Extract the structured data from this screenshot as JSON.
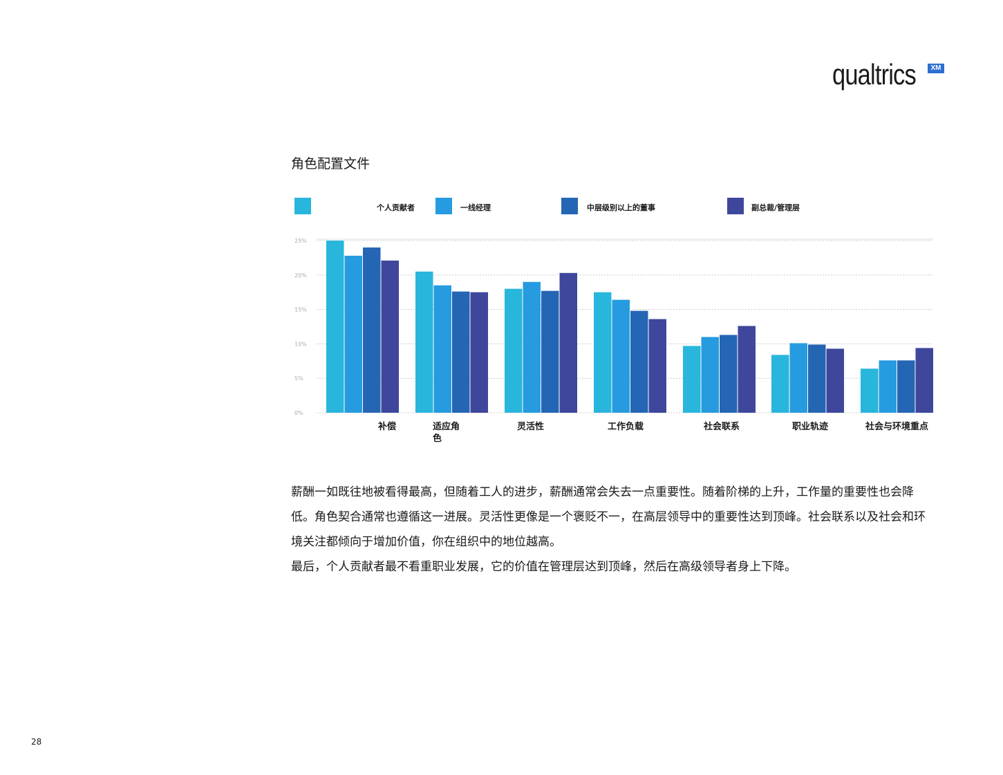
{
  "logo": {
    "text": "qualtrics",
    "badge": "XM"
  },
  "section_title": "角色配置文件",
  "colors": {
    "series_1": "#29b6dc",
    "series_2": "#279be0",
    "series_3": "#2466b4",
    "series_4": "#3e479c",
    "grid": "#c9c9c9",
    "tick": "#aaaaaa"
  },
  "chart_data": {
    "type": "bar",
    "title": "",
    "xlabel": "",
    "ylabel": "",
    "ylim": [
      0,
      25
    ],
    "yticks": [
      "0%",
      "5%",
      "10%",
      "15%",
      "20%",
      "25%"
    ],
    "legend_position": "top",
    "grid": true,
    "categories": [
      "补偿",
      "适应角色",
      "灵活性",
      "工作负载",
      "社会联系",
      "职业轨迹",
      "社会与环境重点"
    ],
    "series": [
      {
        "name": "个人贡献者",
        "values": [
          25.0,
          20.5,
          18.0,
          17.5,
          9.7,
          8.4,
          6.4
        ]
      },
      {
        "name": "一线经理",
        "values": [
          22.8,
          18.5,
          19.0,
          16.4,
          11.0,
          10.1,
          7.6
        ]
      },
      {
        "name": "中层级别以上的董事",
        "values": [
          24.0,
          17.6,
          17.7,
          14.8,
          11.3,
          9.9,
          7.6
        ]
      },
      {
        "name": "副总裁/管理层",
        "values": [
          22.1,
          17.5,
          20.3,
          13.6,
          12.6,
          9.3,
          9.4
        ]
      }
    ]
  },
  "body": {
    "paragraphs": [
      "薪酬一如既往地被看得最高，但随着工人的进步，薪酬通常会失去一点重要性。随着阶梯的上升，工作量的重要性也会降低。角色契合通常也遵循这一进展。灵活性更像是一个褒贬不一，在高层领导中的重要性达到顶峰。社会联系以及社会和环境关注都倾向于增加价值，你在组织中的地位越高。",
      "最后，个人贡献者最不看重职业发展，它的价值在管理层达到顶峰，然后在高级领导者身上下降。"
    ]
  },
  "page_number": "28"
}
